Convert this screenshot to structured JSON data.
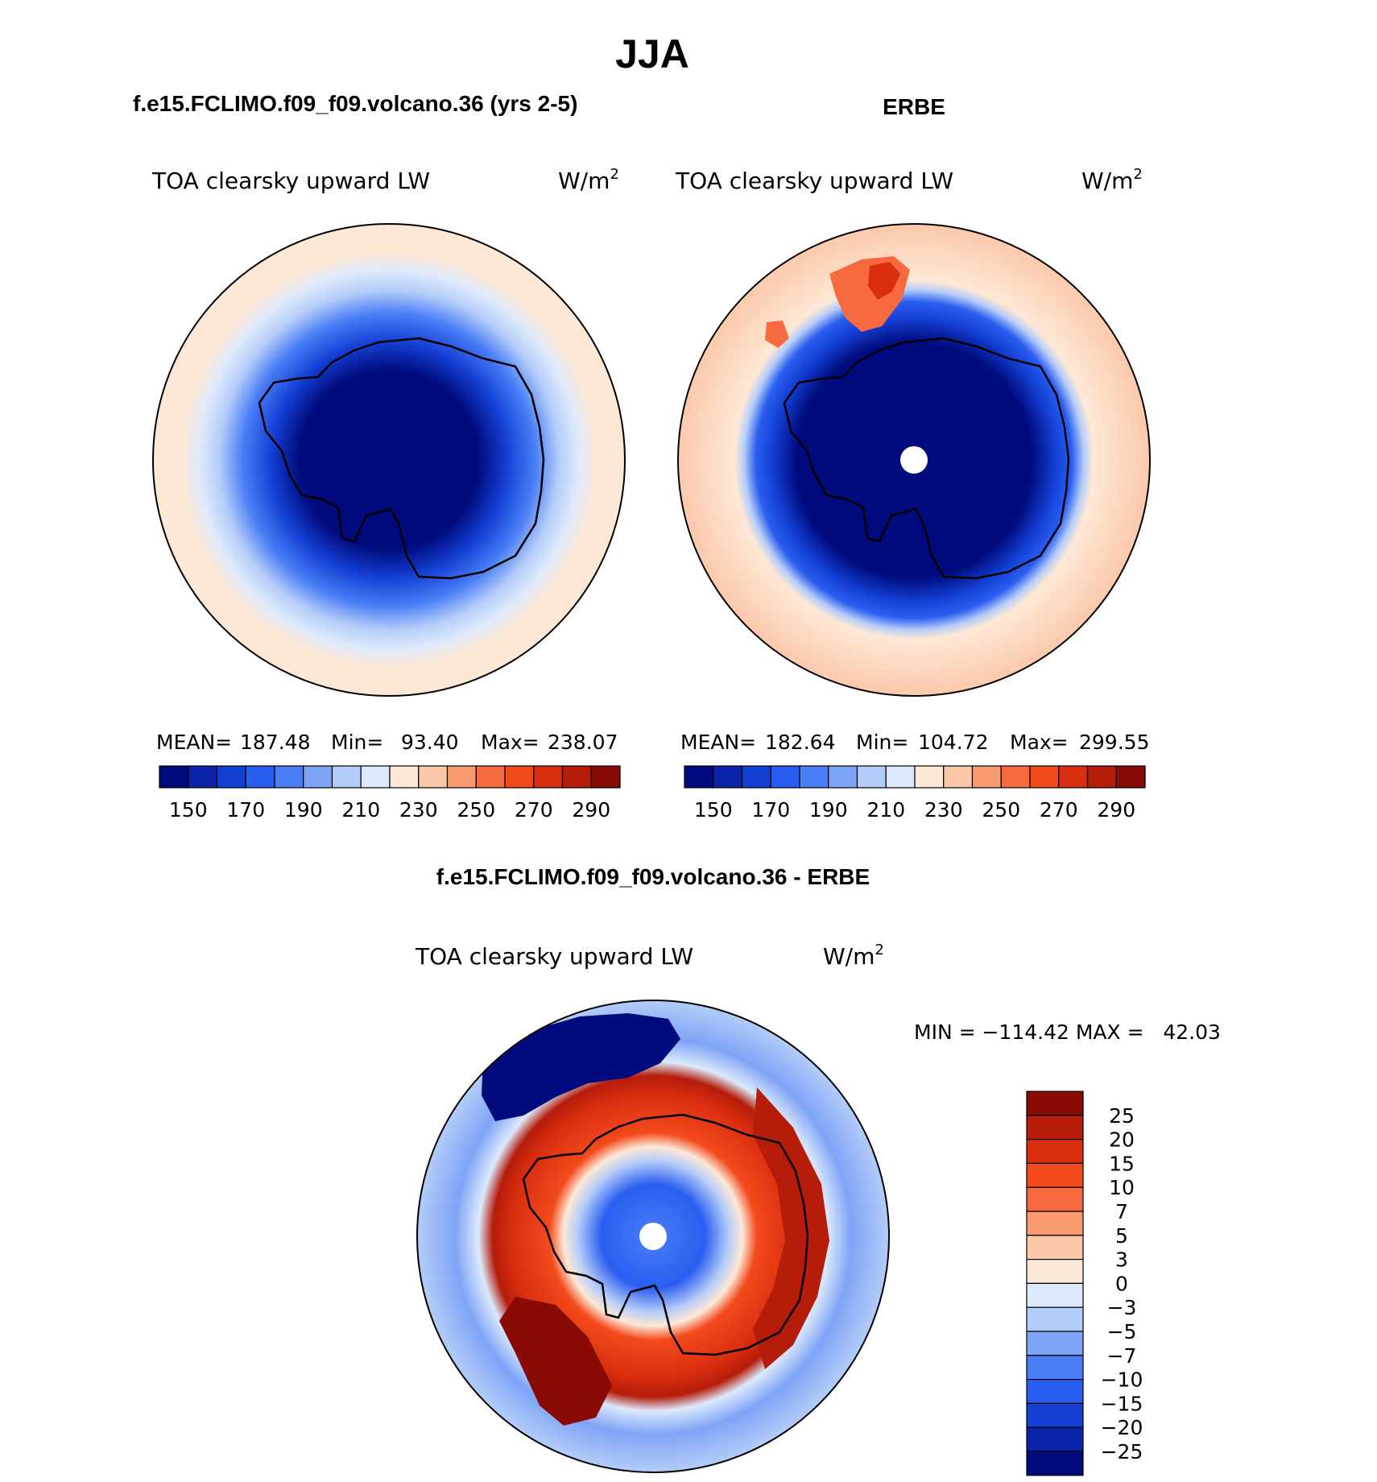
{
  "main_title": "JJA",
  "panels": [
    {
      "case_title": "f.e15.FCLIMO.f09_f09.volcano.36 (yrs 2-5)",
      "variable": "TOA clearsky upward LW",
      "units": "W/m",
      "units_exp": "2",
      "stats": {
        "mean_label": "MEAN=",
        "mean": "187.48",
        "min_label": "Min=",
        "min": "93.40",
        "max_label": "Max=",
        "max": "238.07"
      },
      "pole_hole": false
    },
    {
      "case_title": "ERBE",
      "variable": "TOA clearsky upward LW",
      "units": "W/m",
      "units_exp": "2",
      "stats": {
        "mean_label": "MEAN=",
        "mean": "182.64",
        "min_label": "Min=",
        "min": "104.72",
        "max_label": "Max=",
        "max": "299.55"
      },
      "pole_hole": true
    }
  ],
  "abs_colorbar": {
    "colors": [
      "#000c7e",
      "#0a23a8",
      "#1440d4",
      "#2a5ef0",
      "#4a7ef6",
      "#7ea4f6",
      "#b4ccf8",
      "#dce9fc",
      "#fde8d6",
      "#fcc8aa",
      "#fa9a70",
      "#f76a40",
      "#f34a1c",
      "#d92e10",
      "#b51c0a",
      "#8a0a06"
    ],
    "tick_labels": [
      "150",
      "170",
      "190",
      "210",
      "230",
      "250",
      "270",
      "290"
    ]
  },
  "diff_panel": {
    "title": "f.e15.FCLIMO.f09_f09.volcano.36 - ERBE",
    "variable": "TOA clearsky upward LW",
    "units": "W/m",
    "units_exp": "2",
    "minmax": "MIN = −114.42 MAX =   42.03"
  },
  "diff_colorbar": {
    "colors_top_to_bottom": [
      "#8a0a06",
      "#b51c0a",
      "#d92e10",
      "#f34a1c",
      "#f76a40",
      "#fa9a70",
      "#fcc8aa",
      "#fde8d6",
      "#dce9fc",
      "#b4ccf8",
      "#7ea4f6",
      "#4a7ef6",
      "#2a5ef0",
      "#1440d4",
      "#0a23a8",
      "#000c7e"
    ],
    "tick_labels": [
      "25",
      "20",
      "15",
      "10",
      "7",
      "5",
      "3",
      "0",
      "−3",
      "−5",
      "−7",
      "−10",
      "−15",
      "−20",
      "−25"
    ]
  }
}
